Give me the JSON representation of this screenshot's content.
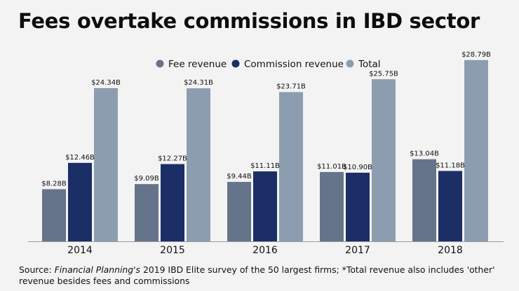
{
  "title": "Fees overtake commissions in IBD sector",
  "chart_data": {
    "type": "bar",
    "title": "Fees overtake commissions in IBD sector",
    "categories": [
      "2014",
      "2015",
      "2016",
      "2017",
      "2018"
    ],
    "series": [
      {
        "name": "Fee revenue",
        "color": "#65748a",
        "values": [
          8.28,
          9.09,
          9.44,
          11.01,
          13.04
        ],
        "labels": [
          "$8.28B",
          "$9.09B",
          "$9.44B",
          "$11.01B",
          "$13.04B"
        ]
      },
      {
        "name": "Commission revenue",
        "color": "#1b2e66",
        "values": [
          12.46,
          12.27,
          11.11,
          10.9,
          11.18
        ],
        "labels": [
          "$12.46B",
          "$12.27B",
          "$11.11B",
          "$10.90B",
          "$11.18B"
        ]
      },
      {
        "name": "Total",
        "color": "#8c9db0",
        "values": [
          24.34,
          24.31,
          23.71,
          25.75,
          28.79
        ],
        "labels": [
          "$24.34B",
          "$24.31B",
          "$23.71B",
          "$25.75B",
          "$28.79B"
        ]
      }
    ],
    "ylim": [
      0,
      30
    ],
    "xlabel": "",
    "ylabel": "",
    "grid": false,
    "legend": "top-right"
  },
  "source": {
    "prefix": "Source: ",
    "publication": "Financial Planning's",
    "rest": " 2019 IBD Elite survey of the 50 largest firms; *Total revenue also includes 'other' revenue besides fees and commissions"
  }
}
